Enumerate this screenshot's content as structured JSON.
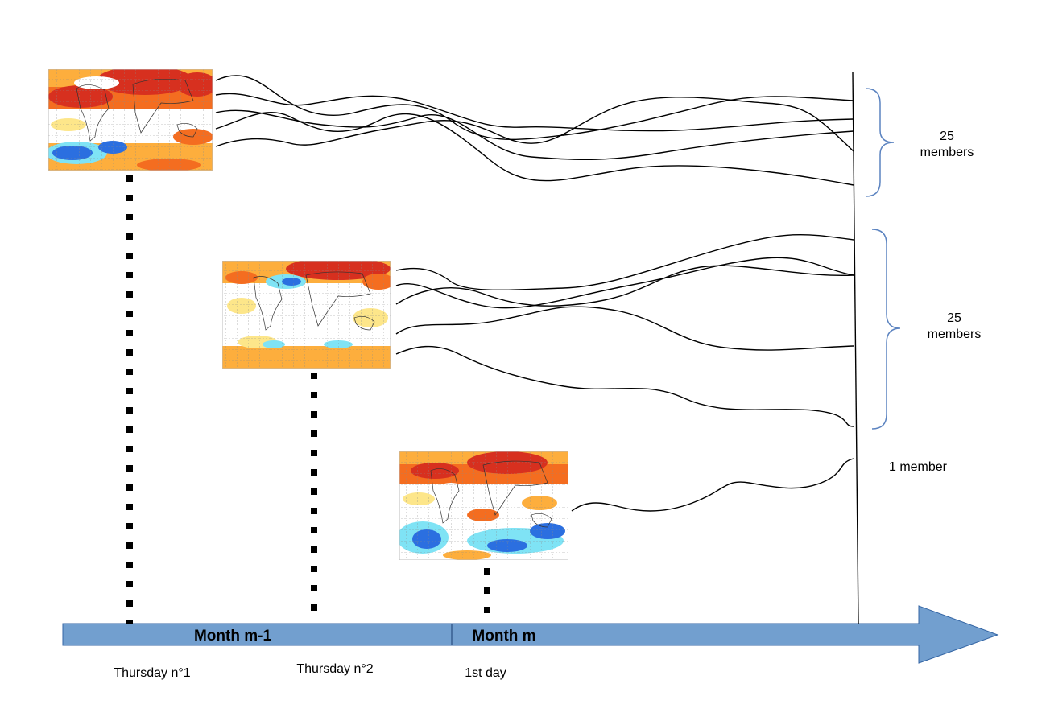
{
  "timeline": {
    "month_prev": "Month m-1",
    "month_curr": "Month m",
    "start_dates": [
      "Thursday n°1",
      "Thursday n°2",
      "1st day"
    ]
  },
  "groups": [
    {
      "count": "25",
      "unit": "members"
    },
    {
      "count": "25",
      "unit": "members"
    },
    {
      "label": "1 member"
    }
  ],
  "colors": {
    "arrow_fill": "#729fcf",
    "arrow_stroke": "#3465a4",
    "brace": "#5b83c0",
    "map_warm_strong": "#d7301f",
    "map_warm": "#f46d20",
    "map_warm_light": "#fdae3d",
    "map_pale": "#fde68a",
    "map_cool_light": "#7fe3f5",
    "map_cool": "#2b6fe0",
    "map_cool_strong": "#1f3fb5"
  }
}
